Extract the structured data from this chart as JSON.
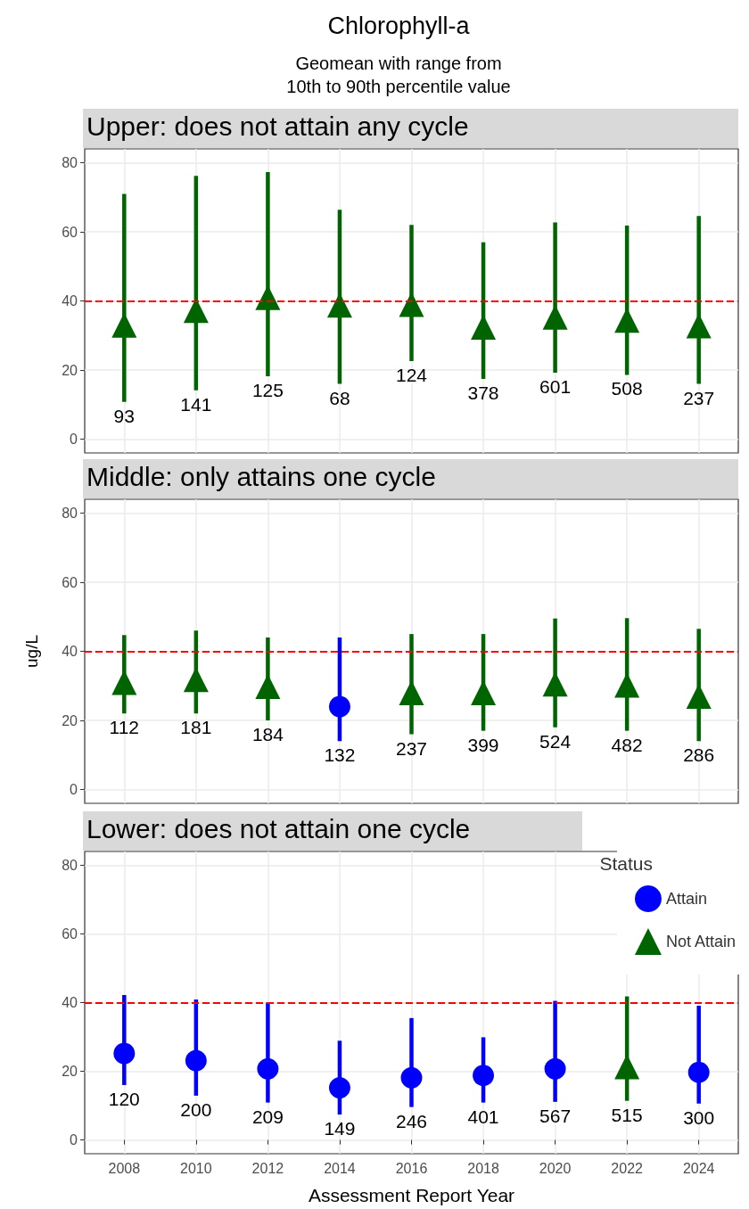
{
  "chart_data": [
    {
      "type": "scatter",
      "title": "Upper: does not attain any cycle",
      "x": [
        2008,
        2010,
        2012,
        2014,
        2016,
        2018,
        2020,
        2022,
        2024
      ],
      "xlim": [
        2006.9,
        2025.1
      ],
      "xticks": [
        2008,
        2010,
        2012,
        2014,
        2016,
        2018,
        2020,
        2022,
        2024
      ],
      "ylim": [
        -4,
        84
      ],
      "yticks": [
        0,
        20,
        40,
        60,
        80
      ],
      "tick_labels": "y",
      "grid": true,
      "legend": false,
      "annotations": [
        "Chlorophyll-a",
        "Geomean with range from\n10th to 90th percentile value",
        {
          "text": "93",
          "x": 2008,
          "y": 10.8
        },
        {
          "text": "141",
          "x": 2010,
          "y": 14.1
        },
        {
          "text": "125",
          "x": 2012,
          "y": 18.2
        },
        {
          "text": "68",
          "x": 2014,
          "y": 16
        },
        {
          "text": "124",
          "x": 2016,
          "y": 22.6
        },
        {
          "text": "378",
          "x": 2018,
          "y": 17.4
        },
        {
          "text": "601",
          "x": 2020,
          "y": 19.2
        },
        {
          "text": "508",
          "x": 2022,
          "y": 18.6
        },
        {
          "text": "237",
          "x": 2024,
          "y": 16
        }
      ],
      "ref_lines": [
        {
          "axis": "y",
          "value": 40,
          "color": "#ff0000",
          "line_style": "dashed"
        }
      ],
      "series": [
        {
          "color": "#006400",
          "marker": "triangle",
          "values": [
            33,
            37.2,
            41,
            38.8,
            39,
            32.4,
            35.3,
            34.4,
            32.8
          ],
          "errors": [
            [
              10.8,
              71
            ],
            [
              14.1,
              76.2
            ],
            [
              18.2,
              77.3
            ],
            [
              16,
              66.4
            ],
            [
              22.6,
              62
            ],
            [
              17.4,
              57
            ],
            [
              19.2,
              62.7
            ],
            [
              18.6,
              61.8
            ],
            [
              16,
              64.6
            ]
          ]
        }
      ]
    },
    {
      "type": "scatter",
      "title": "Middle: only attains one cycle",
      "ylabel": "ug/L",
      "x": [
        2008,
        2010,
        2012,
        2014,
        2016,
        2018,
        2020,
        2022,
        2024
      ],
      "xlim": [
        2006.9,
        2025.1
      ],
      "xticks": [
        2008,
        2010,
        2012,
        2014,
        2016,
        2018,
        2020,
        2022,
        2024
      ],
      "ylim": [
        -4,
        84
      ],
      "yticks": [
        0,
        20,
        40,
        60,
        80
      ],
      "tick_labels": "y",
      "grid": true,
      "legend": false,
      "annotations": [
        {
          "text": "112",
          "x": 2008,
          "y": 22
        },
        {
          "text": "181",
          "x": 2010,
          "y": 22
        },
        {
          "text": "184",
          "x": 2012,
          "y": 20
        },
        {
          "text": "132",
          "x": 2014,
          "y": 14
        },
        {
          "text": "237",
          "x": 2016,
          "y": 16
        },
        {
          "text": "399",
          "x": 2018,
          "y": 17
        },
        {
          "text": "524",
          "x": 2020,
          "y": 18
        },
        {
          "text": "482",
          "x": 2022,
          "y": 17
        },
        {
          "text": "286",
          "x": 2024,
          "y": 14
        }
      ],
      "ref_lines": [
        {
          "axis": "y",
          "value": 40,
          "color": "#ff0000",
          "line_style": "dashed"
        }
      ],
      "series": [
        {
          "color": "#0000ff",
          "marker": "circle",
          "values": [
            null,
            null,
            null,
            24,
            null,
            null,
            null,
            null,
            null
          ],
          "errors": [
            null,
            null,
            null,
            [
              14,
              44
            ],
            null,
            null,
            null,
            null,
            null
          ]
        },
        {
          "color": "#006400",
          "marker": "triangle",
          "values": [
            31,
            31.8,
            29.8,
            null,
            28,
            28,
            30.5,
            30.2,
            27
          ],
          "errors": [
            [
              22,
              44.7
            ],
            [
              22,
              46
            ],
            [
              20,
              44
            ],
            null,
            [
              16,
              45
            ],
            [
              17,
              45
            ],
            [
              18,
              49.5
            ],
            [
              17,
              49.6
            ],
            [
              14,
              46.5
            ]
          ]
        }
      ]
    },
    {
      "type": "scatter",
      "title": "Lower: does not attain one cycle",
      "xlabel": "Assessment Report Year",
      "legend_title": "Status",
      "x": [
        2008,
        2010,
        2012,
        2014,
        2016,
        2018,
        2020,
        2022,
        2024
      ],
      "xlim": [
        2006.9,
        2025.1
      ],
      "xticks": [
        2008,
        2010,
        2012,
        2014,
        2016,
        2018,
        2020,
        2022,
        2024
      ],
      "ylim": [
        -4,
        84
      ],
      "yticks": [
        0,
        20,
        40,
        60,
        80
      ],
      "grid": true,
      "legend": "top right",
      "annotations": [
        {
          "text": "120",
          "x": 2008,
          "y": 16
        },
        {
          "text": "200",
          "x": 2010,
          "y": 12.9
        },
        {
          "text": "209",
          "x": 2012,
          "y": 10.9
        },
        {
          "text": "149",
          "x": 2014,
          "y": 7.4
        },
        {
          "text": "246",
          "x": 2016,
          "y": 9.6
        },
        {
          "text": "401",
          "x": 2018,
          "y": 10.9
        },
        {
          "text": "567",
          "x": 2020,
          "y": 11.1
        },
        {
          "text": "515",
          "x": 2022,
          "y": 11.4
        },
        {
          "text": "300",
          "x": 2024,
          "y": 10.6
        }
      ],
      "ref_lines": [
        {
          "axis": "y",
          "value": 40,
          "color": "#ff0000",
          "line_style": "dashed"
        }
      ],
      "series": [
        {
          "name": "Attain",
          "color": "#0000ff",
          "marker": "circle",
          "values": [
            25.2,
            23.1,
            20.7,
            15.2,
            18.1,
            18.8,
            20.7,
            null,
            19.7
          ],
          "errors": [
            [
              16,
              42.2
            ],
            [
              12.9,
              40.9
            ],
            [
              10.9,
              40
            ],
            [
              7.4,
              28.9
            ],
            [
              9.6,
              35.5
            ],
            [
              10.9,
              29.9
            ],
            [
              11.1,
              40.5
            ],
            null,
            [
              10.6,
              39.1
            ]
          ]
        },
        {
          "name": "Not Attain",
          "color": "#006400",
          "marker": "triangle",
          "values": [
            null,
            null,
            null,
            null,
            null,
            null,
            null,
            21.3,
            null
          ],
          "errors": [
            null,
            null,
            null,
            null,
            null,
            null,
            null,
            [
              11.4,
              41.8
            ],
            null
          ]
        }
      ]
    }
  ]
}
